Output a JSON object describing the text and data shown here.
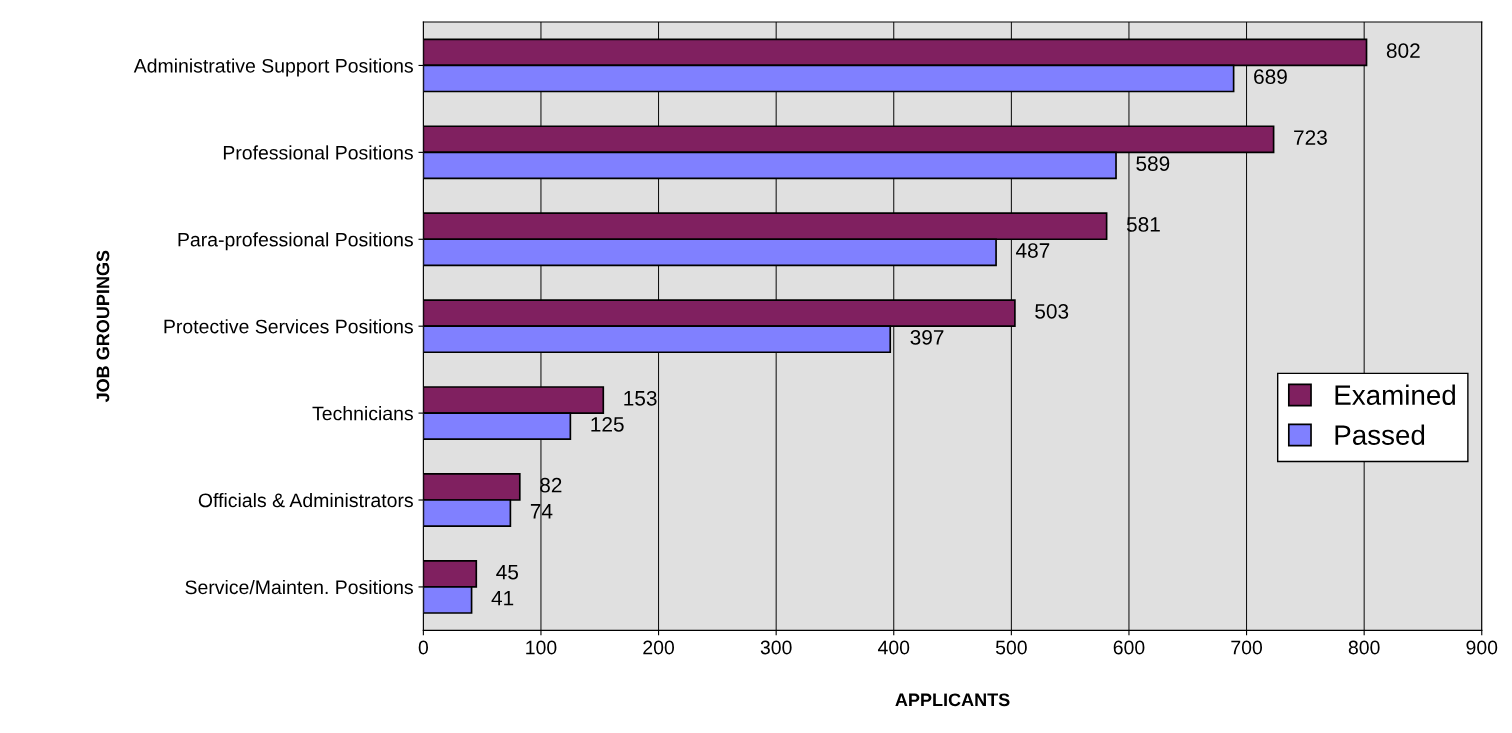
{
  "chart_data": {
    "type": "bar",
    "orientation": "horizontal",
    "xlabel": "APPLICANTS",
    "ylabel": "JOB GROUPINGS",
    "categories": [
      "Administrative Support Positions",
      "Professional Positions",
      "Para-professional Positions",
      "Protective Services Positions",
      "Technicians",
      "Officials & Administrators",
      "Service/Mainten. Positions"
    ],
    "series": [
      {
        "name": "Examined",
        "color": "#802060",
        "values": [
          802,
          723,
          581,
          503,
          153,
          82,
          45
        ]
      },
      {
        "name": "Passed",
        "color": "#8080ff",
        "values": [
          689,
          589,
          487,
          397,
          125,
          74,
          41
        ]
      }
    ],
    "xlim": [
      0,
      900
    ],
    "xticks": [
      0,
      100,
      200,
      300,
      400,
      500,
      600,
      700,
      800,
      900
    ],
    "grid": "x",
    "legend": "right",
    "data_labels": true
  }
}
